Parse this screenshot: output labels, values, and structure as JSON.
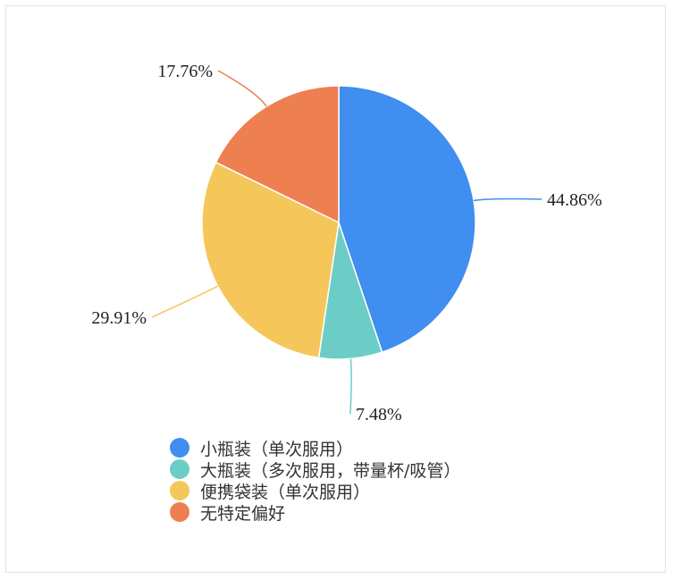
{
  "chart_data": {
    "type": "pie",
    "start": "top",
    "direction": "clockwise",
    "slices": [
      {
        "name": "小瓶装（单次服用）",
        "value": 44.86,
        "label": "44.86%",
        "color": "#3f8ef0"
      },
      {
        "name": "大瓶装（多次服用，带量杯/吸管）",
        "value": 7.48,
        "label": "7.48%",
        "color": "#6ccdc6"
      },
      {
        "name": "便携袋装（单次服用）",
        "value": 29.91,
        "label": "29.91%",
        "color": "#f5c75a"
      },
      {
        "name": "无特定偏好",
        "value": 17.76,
        "label": "17.76%",
        "color": "#ee7f50"
      }
    ],
    "legend_position": "bottom"
  }
}
